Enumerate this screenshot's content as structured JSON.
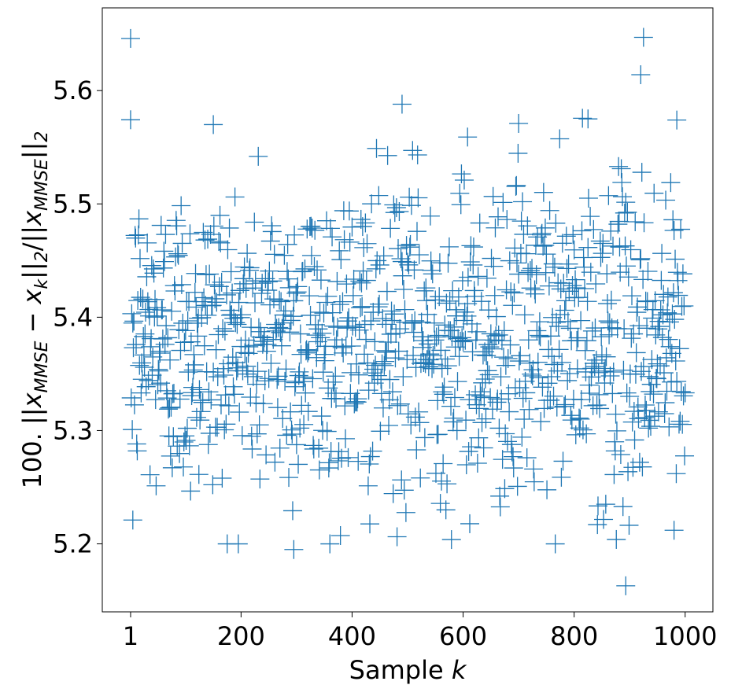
{
  "chart_data": {
    "type": "scatter",
    "title": "",
    "xlabel": "Sample k",
    "ylabel": "100. ||x_MMSE - x_k||_2/||x_MMSE||_2",
    "xlim": [
      -50,
      1050
    ],
    "ylim": [
      5.14,
      5.673
    ],
    "x_ticks": [
      1,
      200,
      400,
      600,
      800,
      1000
    ],
    "y_ticks": [
      5.2,
      5.3,
      5.4,
      5.5,
      5.6
    ],
    "y_tick_labels": [
      "5.2",
      "5.3",
      "5.4",
      "5.5",
      "5.6"
    ],
    "marker": "plus",
    "color": "#1f77b4",
    "grid": false,
    "n_points": 1000,
    "noted_points": [
      {
        "x": 1,
        "y": 5.646
      },
      {
        "x": 5,
        "y": 5.221
      },
      {
        "x": 150,
        "y": 5.57
      },
      {
        "x": 295,
        "y": 5.195
      },
      {
        "x": 490,
        "y": 5.588
      },
      {
        "x": 608,
        "y": 5.559
      },
      {
        "x": 700,
        "y": 5.571
      },
      {
        "x": 825,
        "y": 5.575
      },
      {
        "x": 893,
        "y": 5.163
      },
      {
        "x": 925,
        "y": 5.647
      },
      {
        "x": 920,
        "y": 5.614
      },
      {
        "x": 985,
        "y": 5.574
      },
      {
        "x": 980,
        "y": 5.212
      }
    ],
    "distribution": {
      "mean": 5.38,
      "std": 0.07,
      "min": 5.163,
      "max": 5.647
    }
  }
}
